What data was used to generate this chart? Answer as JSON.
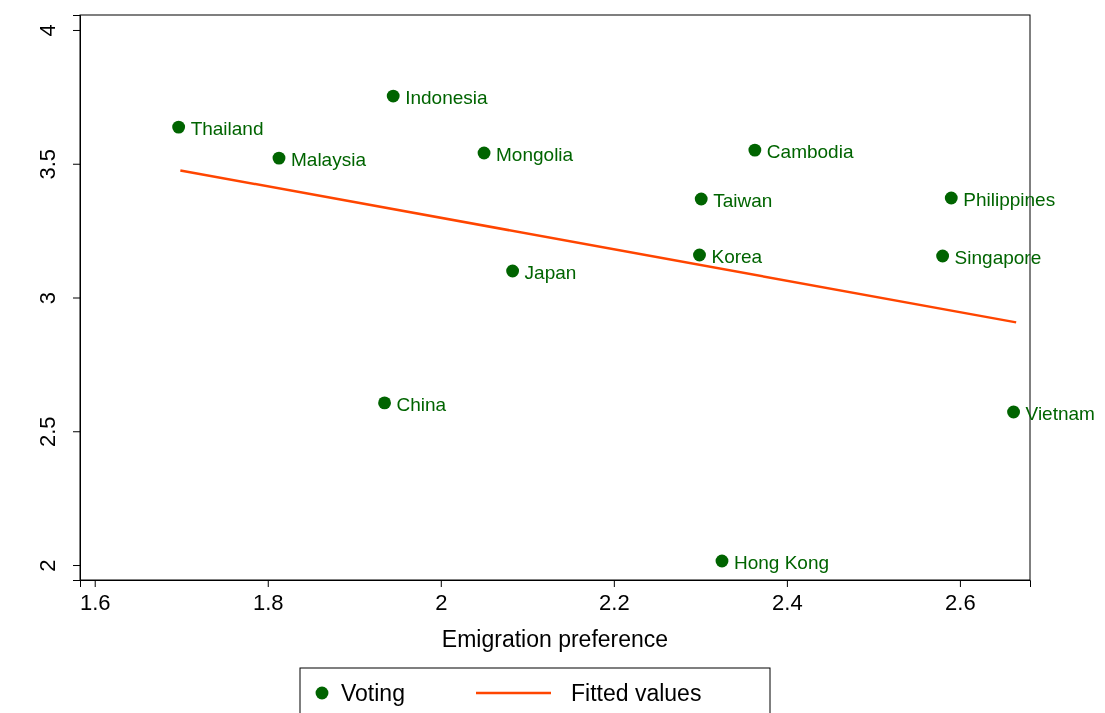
{
  "chart_data": {
    "type": "scatter",
    "xlabel": "Emigration preference",
    "xlim": [
      1.583,
      2.681
    ],
    "ylim": [
      1.944,
      4.056
    ],
    "xticks": [
      {
        "value": 1.6,
        "label": "1.6"
      },
      {
        "value": 1.8,
        "label": "1.8"
      },
      {
        "value": 2,
        "label": "2"
      },
      {
        "value": 2.2,
        "label": "2.2"
      },
      {
        "value": 2.4,
        "label": "2.4"
      },
      {
        "value": 2.6,
        "label": "2.6"
      }
    ],
    "yticks": [
      2,
      {
        "value": 2.5,
        "label": "2.5"
      },
      3,
      {
        "value": 3.5,
        "label": "3.5"
      },
      4
    ],
    "grid": false,
    "legend": "bottom",
    "marker": "circle",
    "series": [
      {
        "name": "Voting",
        "color": "#006400",
        "x": [
          1.697,
          1.813,
          1.945,
          2.05,
          2.083,
          1.935,
          2.363,
          2.301,
          2.299,
          2.325,
          2.59,
          2.58,
          2.662
        ],
        "values": [
          3.637,
          3.521,
          3.753,
          3.54,
          3.099,
          2.606,
          3.551,
          3.368,
          3.159,
          2.015,
          3.372,
          3.155,
          2.572
        ]
      },
      {
        "name": "Fitted values",
        "type": "line",
        "color": "#ff4500",
        "line_style": "solid",
        "marker": "none",
        "x": [
          1.699,
          2.665
        ],
        "values": [
          3.475,
          2.907
        ]
      }
    ],
    "annotations": [
      {
        "text": "Thailand",
        "x": 1.697,
        "y": 3.637
      },
      {
        "text": "Malaysia",
        "x": 1.813,
        "y": 3.521
      },
      {
        "text": "Indonesia",
        "x": 1.945,
        "y": 3.753
      },
      {
        "text": "Mongolia",
        "x": 2.05,
        "y": 3.54
      },
      {
        "text": "Japan",
        "x": 2.083,
        "y": 3.099
      },
      {
        "text": "China",
        "x": 1.935,
        "y": 2.606
      },
      {
        "text": "Cambodia",
        "x": 2.363,
        "y": 3.551
      },
      {
        "text": "Taiwan",
        "x": 2.301,
        "y": 3.368
      },
      {
        "text": "Korea",
        "x": 2.299,
        "y": 3.159
      },
      {
        "text": "Hong Kong",
        "x": 2.325,
        "y": 2.015
      },
      {
        "text": "Philippines",
        "x": 2.59,
        "y": 3.372
      },
      {
        "text": "Singapore",
        "x": 2.58,
        "y": 3.155
      },
      {
        "text": "Vietnam",
        "x": 2.662,
        "y": 2.572
      }
    ]
  }
}
